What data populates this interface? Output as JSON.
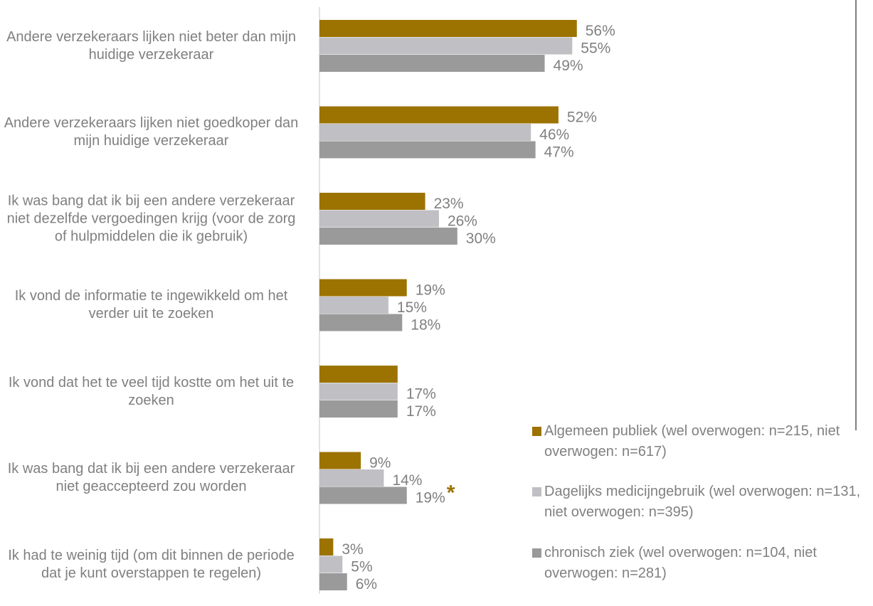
{
  "chart_data": {
    "type": "bar",
    "orientation": "horizontal",
    "categories": [
      "Andere verzekeraars lijken niet beter dan mijn huidige verzekeraar",
      "Andere verzekeraars lijken niet goedkoper dan mijn huidige verzekeraar",
      "Ik was bang dat ik bij een andere verzekeraar niet dezelfde vergoedingen krijg (voor de zorg of hulpmiddelen die ik gebruik)",
      "Ik vond de informatie te ingewikkeld om het verder uit te zoeken",
      "Ik vond dat het te veel tijd kostte om het uit te zoeken",
      "Ik was bang dat ik bij een andere verzekeraar niet geaccepteerd zou worden",
      "Ik had te weinig tijd (om dit binnen de periode dat je kunt overstappen te regelen)"
    ],
    "series": [
      {
        "name": "Algemeen publiek (wel overwogen: n=215, niet overwogen: n=617)",
        "color": "#9c7300",
        "values": [
          56,
          52,
          23,
          19,
          17,
          9,
          3
        ],
        "value_labels": [
          "56%",
          "52%",
          "23%",
          "19%",
          null,
          "9%",
          "3%"
        ]
      },
      {
        "name": "Dagelijks medicijngebruik (wel overwogen: n=131, niet overwogen: n=395)",
        "color": "#c0c0c4",
        "values": [
          55,
          46,
          26,
          15,
          17,
          14,
          5
        ],
        "value_labels": [
          "55%",
          "46%",
          "26%",
          "15%",
          "17%",
          "14%",
          "5%"
        ]
      },
      {
        "name": "chronisch ziek (wel overwogen: n=104, niet overwogen: n=281)",
        "color": "#9a9a9a",
        "values": [
          49,
          47,
          30,
          18,
          17,
          19,
          6
        ],
        "value_labels": [
          "49%",
          "47%",
          "30%",
          "18%",
          "17%",
          "19%",
          "6%"
        ]
      }
    ],
    "annotations": [
      {
        "text": "*",
        "color": "#9c7300"
      }
    ],
    "xlim": [
      0,
      100
    ],
    "legend": "bottom-right"
  }
}
